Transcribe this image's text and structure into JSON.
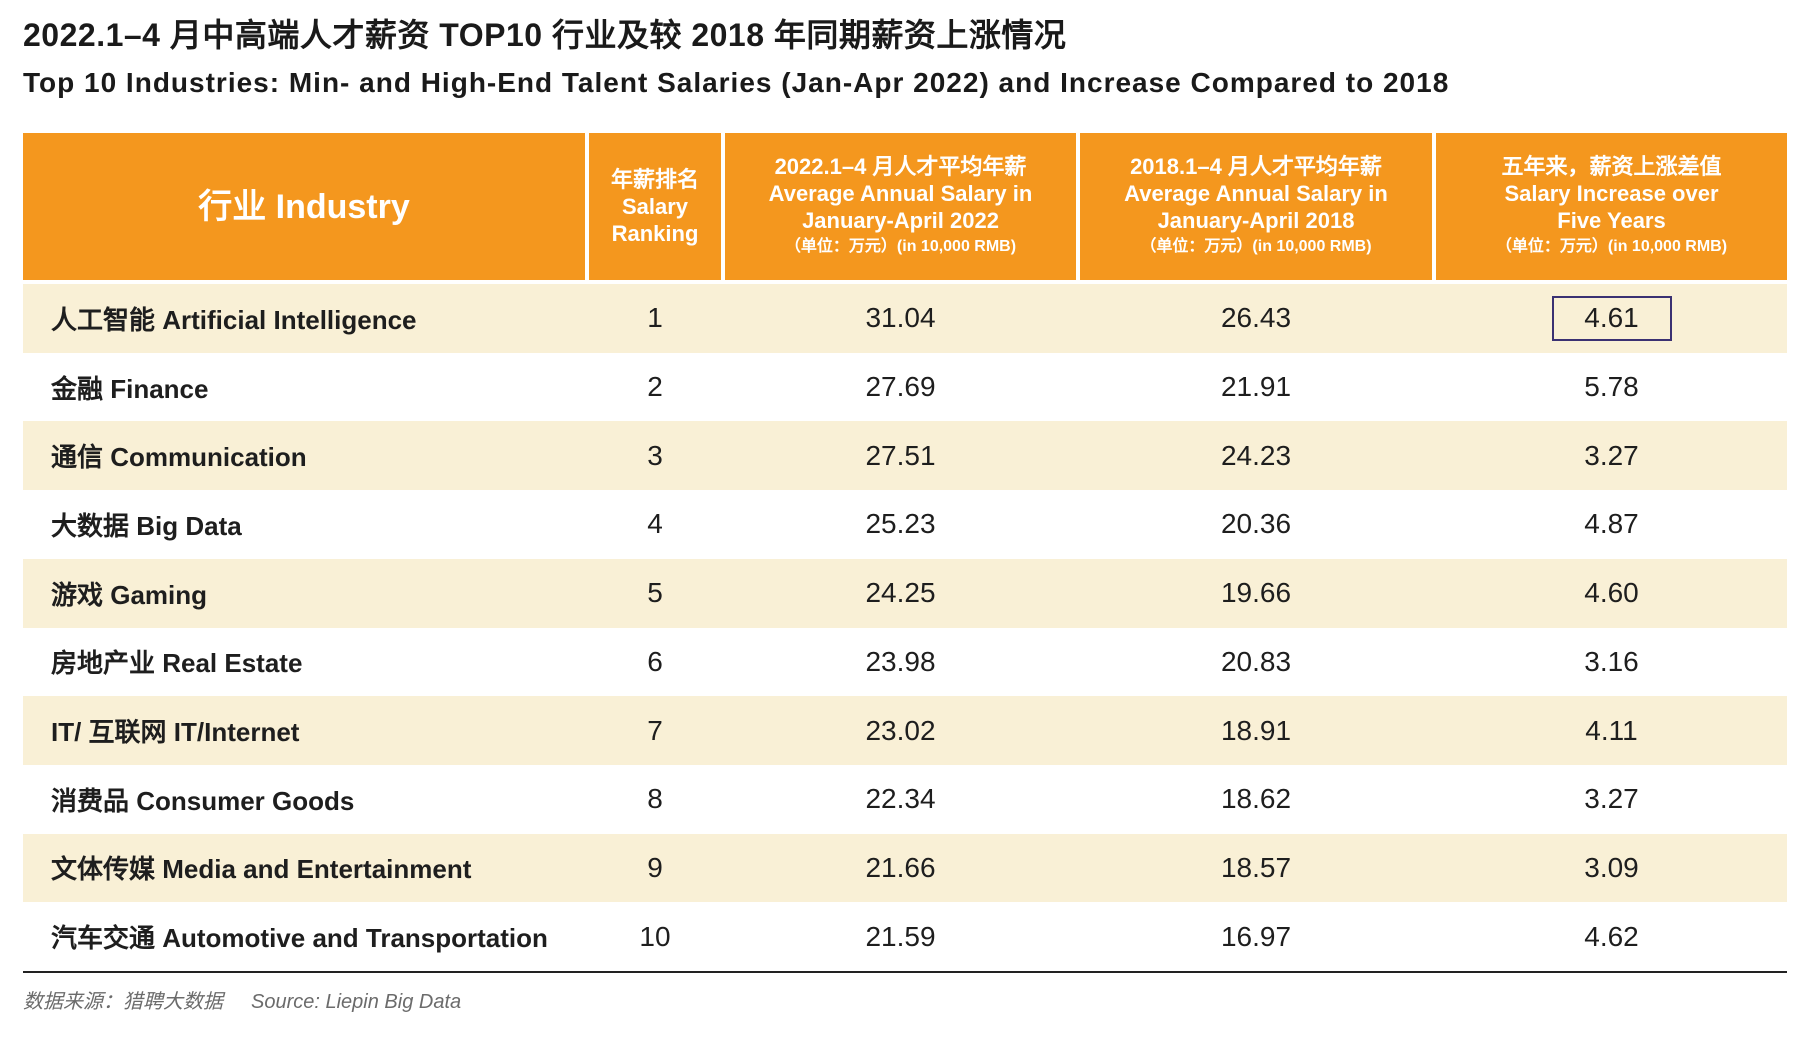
{
  "chart_data": {
    "type": "table",
    "title": "2022.1–4 月中高端人才薪资 TOP10 行业及较 2018 年同期薪资上涨情况",
    "subtitle": "Top 10 Industries: Min- and High-End Talent Salaries (Jan-Apr 2022) and Increase Compared to 2018",
    "columns": {
      "industry": {
        "label": "行业 Industry"
      },
      "rank": {
        "lines": [
          "年薪排名",
          "Salary",
          "Ranking"
        ]
      },
      "salary_2022": {
        "lines": [
          "2022.1–4 月人才平均年薪",
          "Average Annual Salary in",
          "January-April 2022"
        ],
        "unit": "（单位：万元）(in 10,000 RMB)"
      },
      "salary_2018": {
        "lines": [
          "2018.1–4 月人才平均年薪",
          "Average Annual Salary in",
          "January-April 2018"
        ],
        "unit": "（单位：万元）(in 10,000 RMB)"
      },
      "increase": {
        "lines": [
          "五年来，薪资上涨差值",
          "Salary Increase over",
          "Five Years"
        ],
        "unit": "（单位：万元）(in 10,000 RMB)"
      }
    },
    "rows": [
      {
        "industry": "人工智能 Artificial Intelligence",
        "rank": 1,
        "salary_2022": 31.04,
        "salary_2018": 26.43,
        "increase": 4.61
      },
      {
        "industry": "金融 Finance",
        "rank": 2,
        "salary_2022": 27.69,
        "salary_2018": 21.91,
        "increase": 5.78
      },
      {
        "industry": "通信 Communication",
        "rank": 3,
        "salary_2022": 27.51,
        "salary_2018": 24.23,
        "increase": 3.27
      },
      {
        "industry": "大数据 Big Data",
        "rank": 4,
        "salary_2022": 25.23,
        "salary_2018": 20.36,
        "increase": 4.87
      },
      {
        "industry": "游戏 Gaming",
        "rank": 5,
        "salary_2022": 24.25,
        "salary_2018": 19.66,
        "increase": 4.6
      },
      {
        "industry": "房地产业 Real Estate",
        "rank": 6,
        "salary_2022": 23.98,
        "salary_2018": 20.83,
        "increase": 3.16
      },
      {
        "industry": "IT/ 互联网 IT/Internet",
        "rank": 7,
        "salary_2022": 23.02,
        "salary_2018": 18.91,
        "increase": 4.11
      },
      {
        "industry": "消费品 Consumer Goods",
        "rank": 8,
        "salary_2022": 22.34,
        "salary_2018": 18.62,
        "increase": 3.27
      },
      {
        "industry": "文体传媒 Media and Entertainment",
        "rank": 9,
        "salary_2022": 21.66,
        "salary_2018": 18.57,
        "increase": 3.09
      },
      {
        "industry": "汽车交通 Automotive and Transportation",
        "rank": 10,
        "salary_2022": 21.59,
        "salary_2018": 16.97,
        "increase": 4.62
      }
    ],
    "source": {
      "cn": "数据来源：猎聘大数据",
      "en": "Source: Liepin Big Data"
    }
  },
  "selected_cell": {
    "row": 0,
    "column": "increase"
  },
  "colors": {
    "header_fill": "#F4971E",
    "header_text": "#FFFFFF",
    "row_band": "#F9F0D6",
    "selection_border": "#3B3172",
    "text": "#1E1E1E",
    "source_text": "#6B6B6B"
  }
}
